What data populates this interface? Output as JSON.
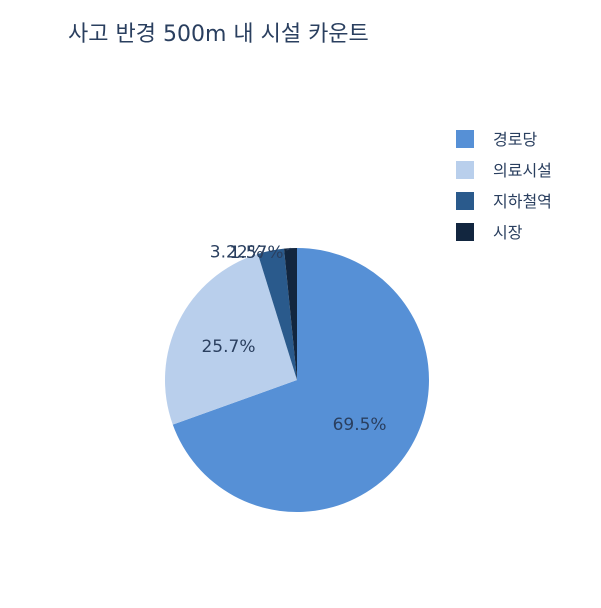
{
  "chart_data": {
    "type": "pie",
    "title": "사고 반경 500m 내 시설 카운트",
    "categories": [
      "경로당",
      "의료시설",
      "지하철역",
      "시장"
    ],
    "values": [
      69.5,
      25.7,
      3.22,
      1.57
    ],
    "percent_labels": [
      "69.5%",
      "25.7%",
      "3.22%",
      "1.57%"
    ],
    "colors": [
      "#5690d6",
      "#b9cfec",
      "#2a5a8c",
      "#12263f"
    ],
    "legend": {
      "position": "top-right",
      "entries": [
        "경로당",
        "의료시설",
        "지하철역",
        "시장"
      ]
    }
  }
}
